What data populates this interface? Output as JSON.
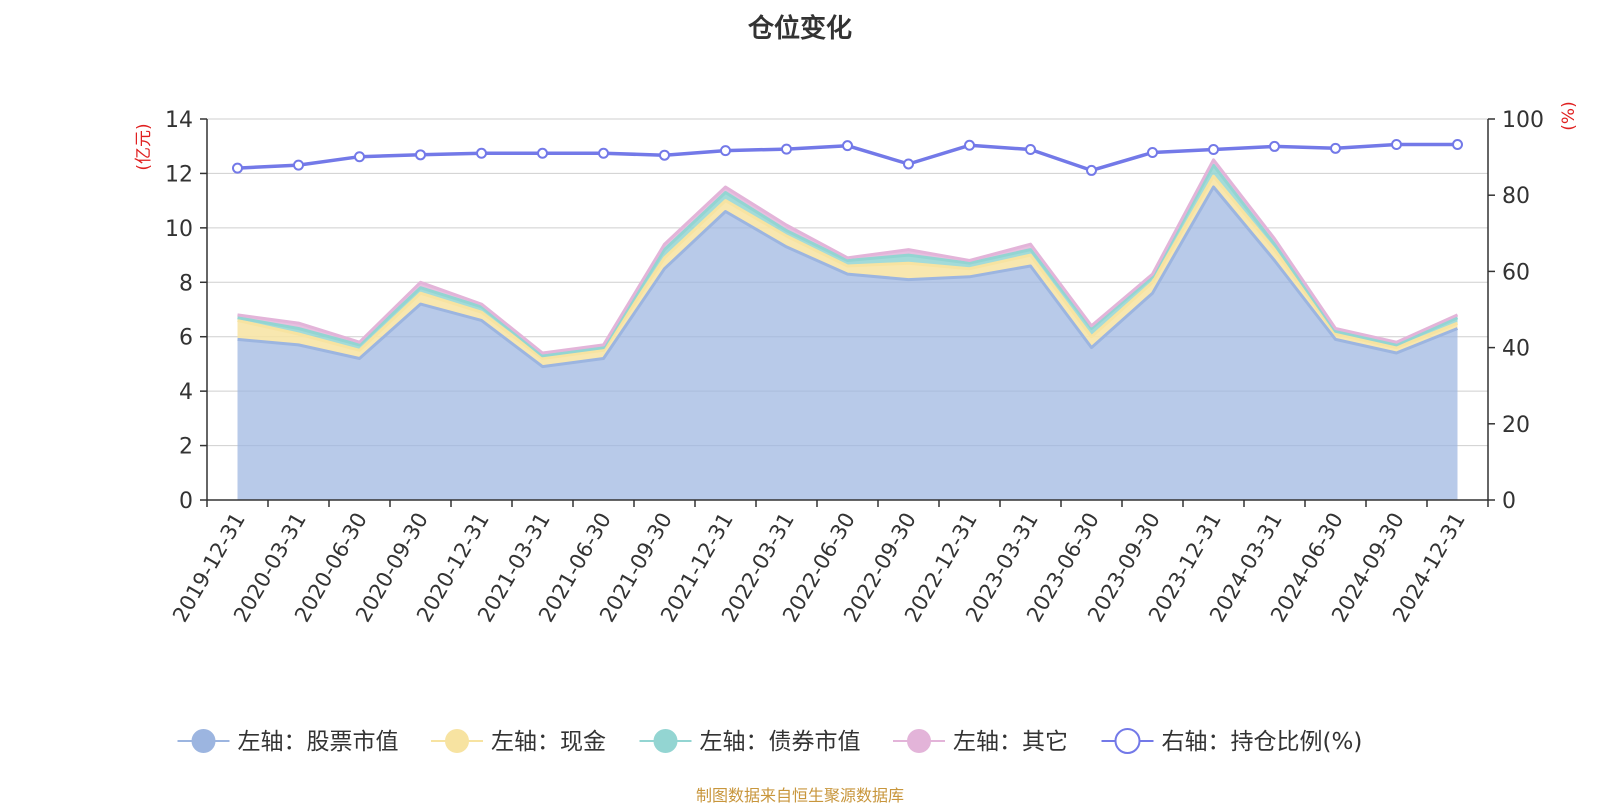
{
  "chart_data": {
    "type": "area",
    "title": "仓位变化",
    "left_axis_label": "(亿元)",
    "right_axis_label": "(%)",
    "left_ylim": [
      0,
      14
    ],
    "left_ticks": [
      0,
      2,
      4,
      6,
      8,
      10,
      12,
      14
    ],
    "right_ylim": [
      0,
      100
    ],
    "right_ticks": [
      0,
      20,
      40,
      60,
      80,
      100
    ],
    "categories": [
      "2019-12-31",
      "2020-03-31",
      "2020-06-30",
      "2020-09-30",
      "2020-12-31",
      "2021-03-31",
      "2021-06-30",
      "2021-09-30",
      "2021-12-31",
      "2022-03-31",
      "2022-06-30",
      "2022-09-30",
      "2022-12-31",
      "2023-03-31",
      "2023-06-30",
      "2023-09-30",
      "2023-12-31",
      "2024-03-31",
      "2024-06-30",
      "2024-09-30",
      "2024-12-31"
    ],
    "series": [
      {
        "name": "左轴：股票市值",
        "axis": "left",
        "kind": "stacked-area",
        "color": "#9cb5e0",
        "values": [
          5.9,
          5.7,
          5.2,
          7.2,
          6.6,
          4.9,
          5.2,
          8.5,
          10.6,
          9.3,
          8.3,
          8.1,
          8.2,
          8.6,
          5.6,
          7.6,
          11.5,
          8.8,
          5.9,
          5.4,
          6.3
        ]
      },
      {
        "name": "左轴：现金",
        "axis": "left",
        "kind": "stacked-area",
        "color": "#f7e3a1",
        "values": [
          0.7,
          0.4,
          0.3,
          0.4,
          0.3,
          0.3,
          0.3,
          0.4,
          0.4,
          0.4,
          0.3,
          0.6,
          0.3,
          0.4,
          0.4,
          0.4,
          0.4,
          0.4,
          0.2,
          0.2,
          0.2
        ]
      },
      {
        "name": "左轴：债券市值",
        "axis": "left",
        "kind": "stacked-area",
        "color": "#93d5d2",
        "values": [
          0.1,
          0.2,
          0.2,
          0.2,
          0.2,
          0.1,
          0.1,
          0.3,
          0.3,
          0.2,
          0.2,
          0.3,
          0.2,
          0.2,
          0.3,
          0.2,
          0.4,
          0.2,
          0.1,
          0.1,
          0.2
        ]
      },
      {
        "name": "左轴：其它",
        "axis": "left",
        "kind": "stacked-area",
        "color": "#e3b4d9",
        "values": [
          0.1,
          0.2,
          0.1,
          0.2,
          0.1,
          0.1,
          0.1,
          0.2,
          0.2,
          0.2,
          0.1,
          0.2,
          0.1,
          0.2,
          0.1,
          0.1,
          0.2,
          0.2,
          0.1,
          0.1,
          0.1
        ]
      },
      {
        "name": "右轴：持仓比例(%)",
        "axis": "right",
        "kind": "line",
        "color": "#7379e8",
        "values": [
          87.1,
          87.9,
          90.1,
          90.6,
          91.0,
          91.0,
          91.0,
          90.5,
          91.7,
          92.1,
          93.0,
          88.2,
          93.1,
          92.0,
          86.5,
          91.2,
          92.0,
          92.8,
          92.3,
          93.3,
          93.3
        ]
      }
    ]
  },
  "source_note": "制图数据来自恒生聚源数据库"
}
